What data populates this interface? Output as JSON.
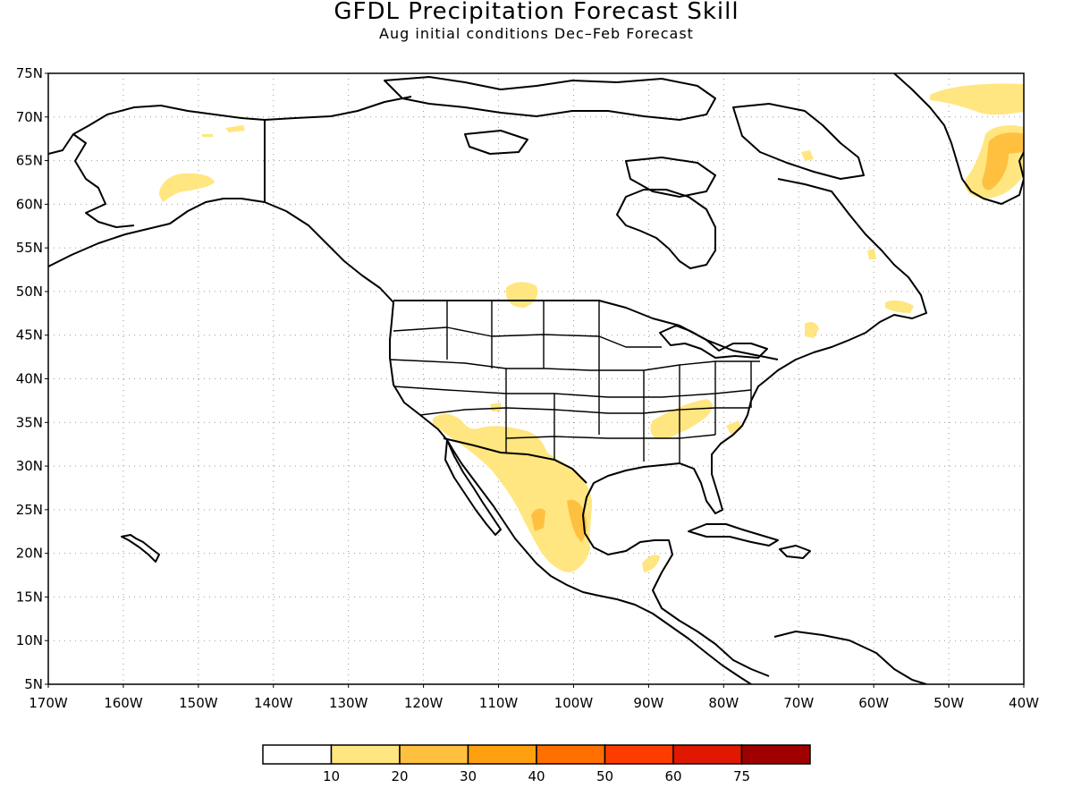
{
  "title": "GFDL Precipitation Forecast Skill",
  "subtitle": "Aug initial conditions  Dec–Feb Forecast",
  "map": {
    "lon_range": [
      -170,
      -40
    ],
    "lat_range": [
      5,
      75
    ],
    "grid": "dotted",
    "lat_ticks": [
      "5N",
      "10N",
      "15N",
      "20N",
      "25N",
      "30N",
      "35N",
      "40N",
      "45N",
      "50N",
      "55N",
      "60N",
      "65N",
      "70N",
      "75N"
    ],
    "lon_ticks": [
      "170W",
      "160W",
      "150W",
      "140W",
      "130W",
      "120W",
      "110W",
      "100W",
      "90W",
      "80W",
      "70W",
      "60W",
      "50W",
      "40W"
    ]
  },
  "colorbar": {
    "labels": [
      "10",
      "20",
      "30",
      "40",
      "50",
      "60",
      "75"
    ],
    "colors": [
      "#ffffff",
      "#ffe680",
      "#ffc040",
      "#ffa010",
      "#ff7000",
      "#ff3c00",
      "#e01800",
      "#a00000"
    ]
  }
}
